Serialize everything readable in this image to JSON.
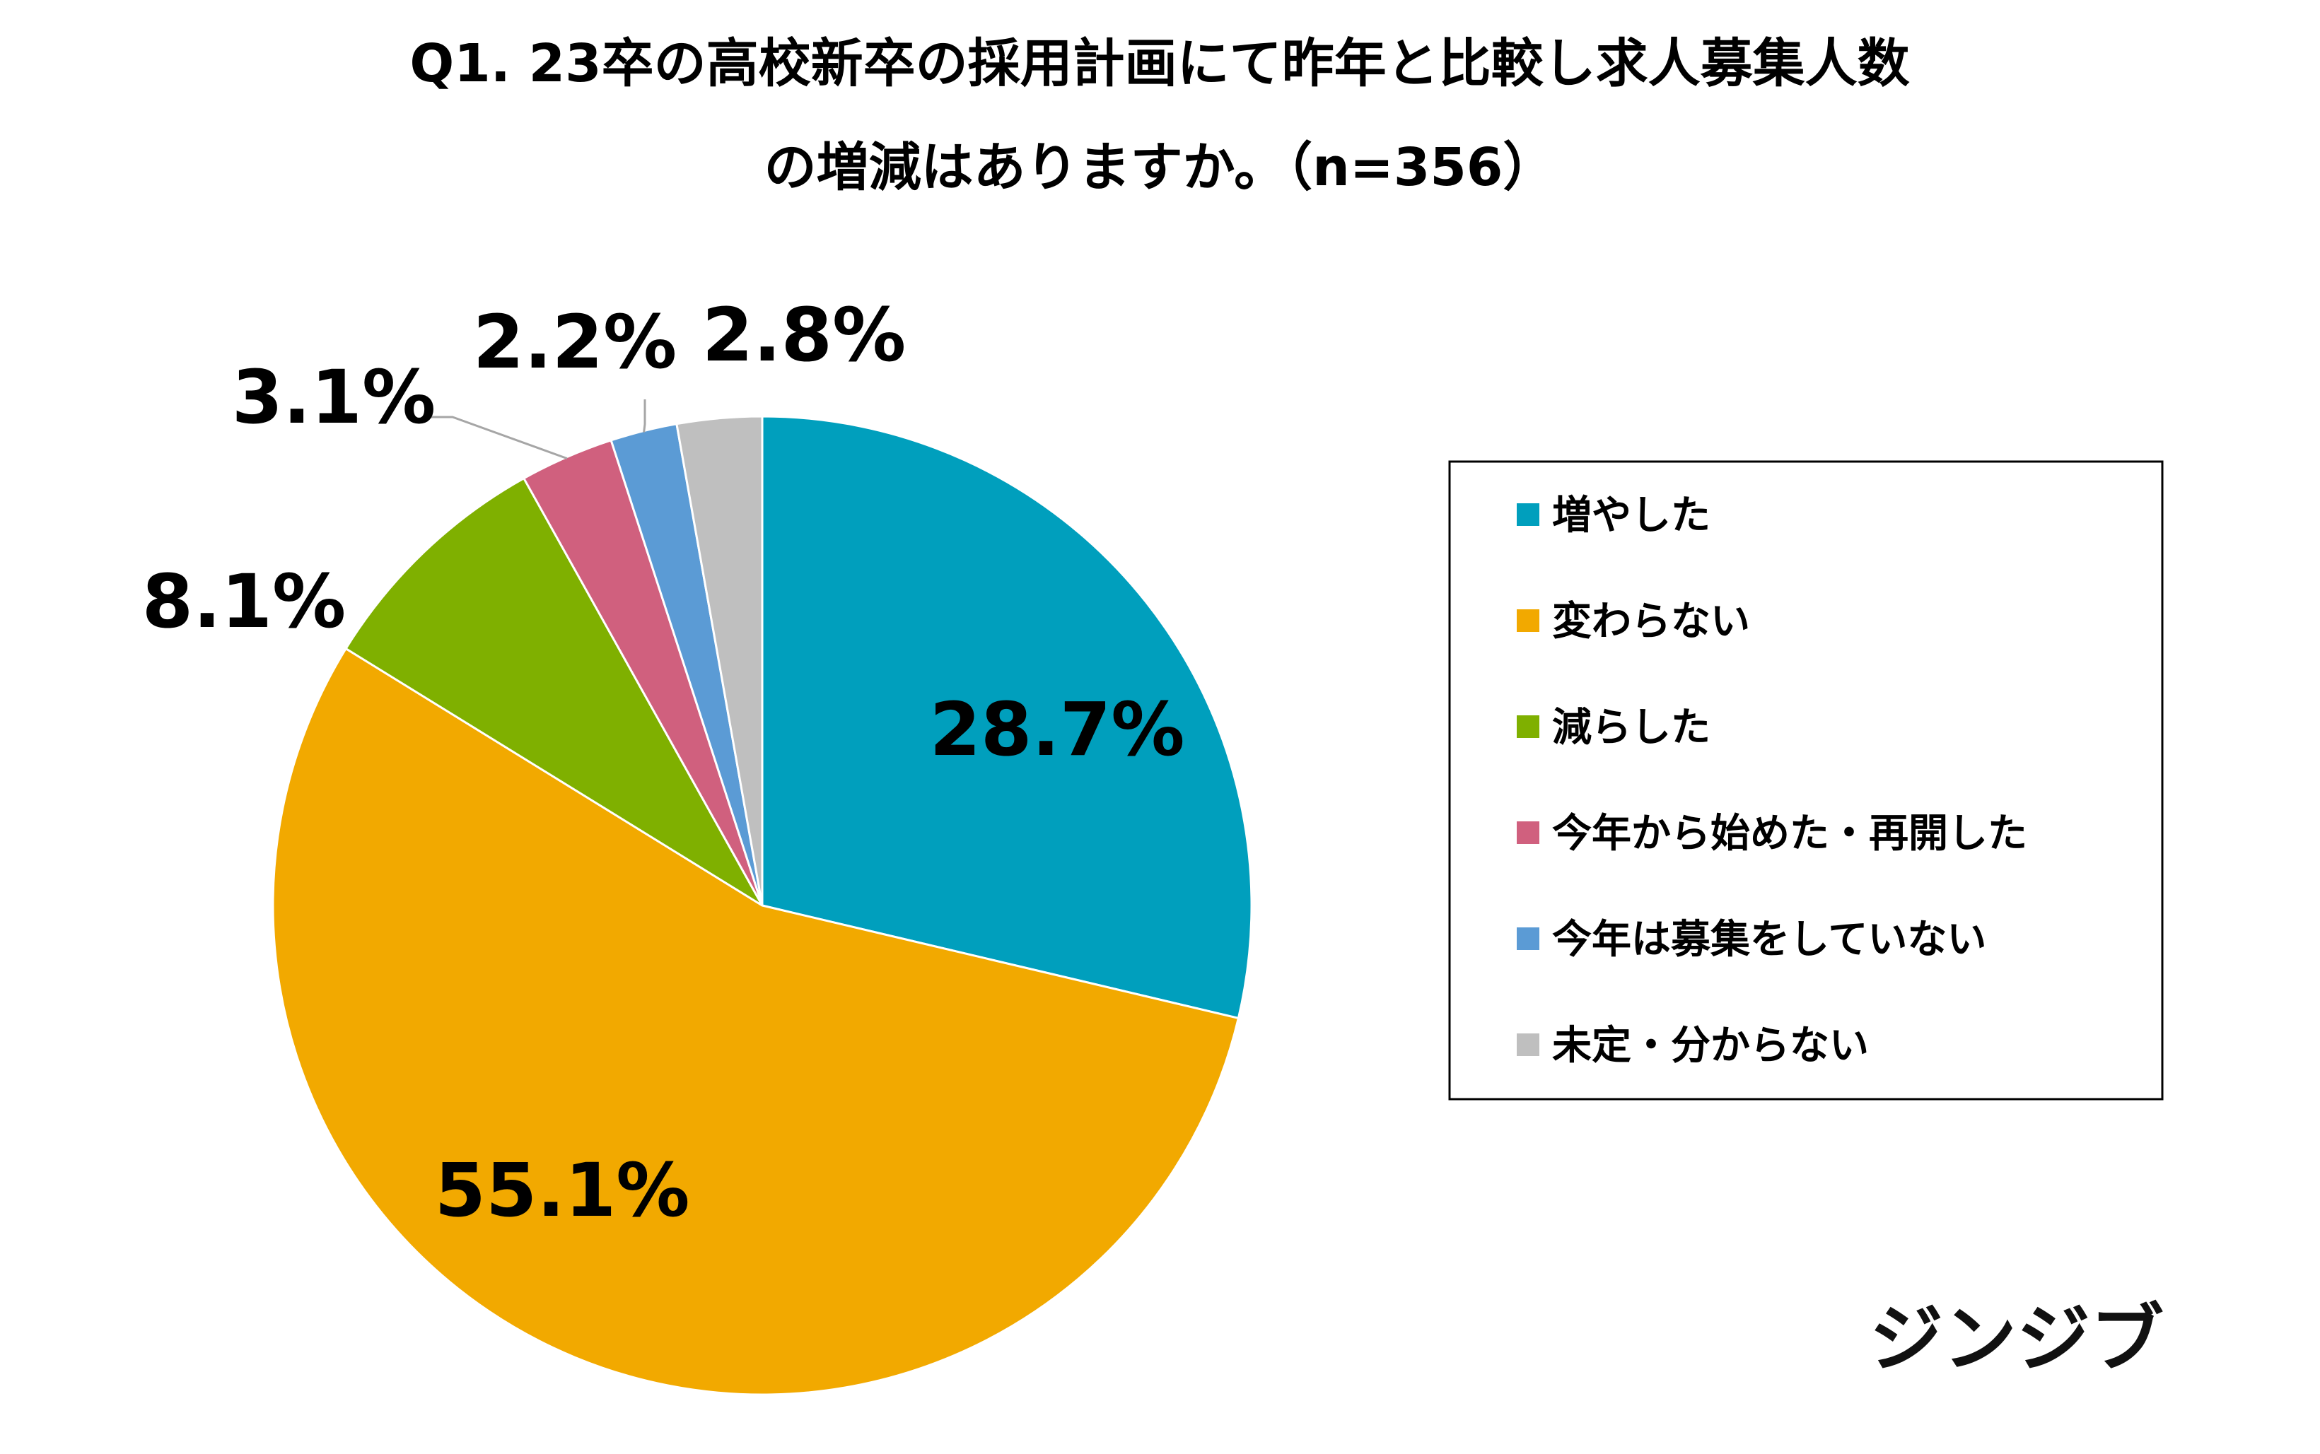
{
  "brand": "ジンジブ",
  "chart_data": {
    "type": "pie",
    "title_lines": [
      "Q1. 23卒の高校新卒の採用計画にて昨年と比較し求人募集人数",
      "の増減はありますか。（n=356）"
    ],
    "categories": [
      "増やした",
      "変わらない",
      "減らした",
      "今年から始めた・再開した",
      "今年は募集をしていない",
      "未定・分からない"
    ],
    "values": [
      28.7,
      55.1,
      8.1,
      3.1,
      2.2,
      2.8
    ],
    "data_labels": [
      "28.7%",
      "55.1%",
      "8.1%",
      "3.1%",
      "2.2%",
      "2.8%"
    ],
    "colors": [
      "#009fbd",
      "#f2a900",
      "#7fb000",
      "#d0607e",
      "#5b9bd5",
      "#bfbfbf"
    ],
    "start_angle": "12 o'clock",
    "direction": "clockwise",
    "legend_position": "right"
  }
}
